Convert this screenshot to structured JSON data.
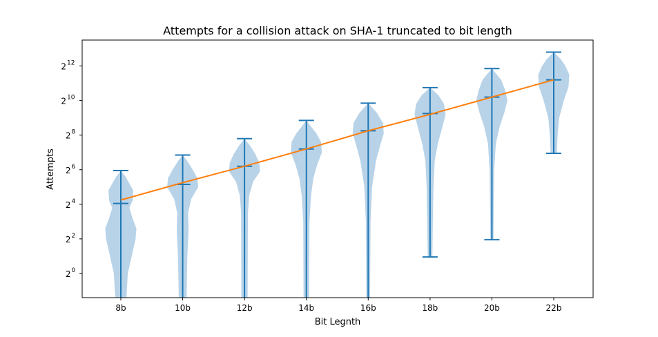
{
  "chart_data": {
    "type": "violin",
    "title": "Attempts for a collision attack on SHA-1 truncated to bit length",
    "xlabel": "Bit Legnth",
    "ylabel": "Attempts",
    "y_scale": "log2",
    "ylim_exp": [
      -1.4,
      13.5
    ],
    "y_ticks": [
      {
        "base": "2",
        "exp": "0",
        "value": 0
      },
      {
        "base": "2",
        "exp": "2",
        "value": 2
      },
      {
        "base": "2",
        "exp": "4",
        "value": 4
      },
      {
        "base": "2",
        "exp": "6",
        "value": 6
      },
      {
        "base": "2",
        "exp": "8",
        "value": 8
      },
      {
        "base": "2",
        "exp": "10",
        "value": 10
      },
      {
        "base": "2",
        "exp": "12",
        "value": 12
      }
    ],
    "categories": [
      "8b",
      "10b",
      "12b",
      "14b",
      "16b",
      "18b",
      "20b",
      "22b"
    ],
    "violins": [
      {
        "category": "8b",
        "max": 5.95,
        "median": 4.05,
        "min": -1.4,
        "profile": [
          [
            -1.4,
            0.36
          ],
          [
            0,
            0.45
          ],
          [
            1,
            0.7
          ],
          [
            2,
            0.95
          ],
          [
            2.6,
            1.0
          ],
          [
            3.2,
            0.75
          ],
          [
            3.8,
            0.55
          ],
          [
            4.2,
            0.75
          ],
          [
            4.8,
            0.8
          ],
          [
            5.2,
            0.55
          ],
          [
            5.6,
            0.3
          ],
          [
            5.95,
            0.0
          ]
        ]
      },
      {
        "category": "10b",
        "max": 6.85,
        "median": 5.15,
        "min": -1.4,
        "profile": [
          [
            -1.4,
            0.25
          ],
          [
            1,
            0.3
          ],
          [
            2.5,
            0.38
          ],
          [
            3.5,
            0.35
          ],
          [
            4.3,
            0.55
          ],
          [
            5.0,
            1.0
          ],
          [
            5.5,
            0.95
          ],
          [
            6.0,
            0.65
          ],
          [
            6.5,
            0.3
          ],
          [
            6.85,
            0.0
          ]
        ]
      },
      {
        "category": "12b",
        "max": 7.8,
        "median": 6.2,
        "min": -1.4,
        "profile": [
          [
            -1.4,
            0.2
          ],
          [
            3.5,
            0.22
          ],
          [
            4.5,
            0.3
          ],
          [
            5.3,
            0.55
          ],
          [
            5.9,
            1.0
          ],
          [
            6.4,
            0.95
          ],
          [
            6.9,
            0.7
          ],
          [
            7.4,
            0.35
          ],
          [
            7.8,
            0.0
          ]
        ]
      },
      {
        "category": "14b",
        "max": 8.85,
        "median": 7.2,
        "min": -1.4,
        "profile": [
          [
            -1.4,
            0.18
          ],
          [
            3,
            0.2
          ],
          [
            4.5,
            0.3
          ],
          [
            5.5,
            0.45
          ],
          [
            6.3,
            0.7
          ],
          [
            7.0,
            1.0
          ],
          [
            7.6,
            0.95
          ],
          [
            8.1,
            0.65
          ],
          [
            8.5,
            0.3
          ],
          [
            8.85,
            0.0
          ]
        ]
      },
      {
        "category": "16b",
        "max": 9.85,
        "median": 8.25,
        "min": -1.4,
        "profile": [
          [
            -1.4,
            0.12
          ],
          [
            3,
            0.15
          ],
          [
            5,
            0.25
          ],
          [
            6.5,
            0.5
          ],
          [
            7.5,
            0.8
          ],
          [
            8.1,
            1.0
          ],
          [
            8.7,
            0.95
          ],
          [
            9.3,
            0.55
          ],
          [
            9.85,
            0.0
          ]
        ]
      },
      {
        "category": "18b",
        "max": 10.75,
        "median": 9.25,
        "min": 0.95,
        "profile": [
          [
            0.95,
            0.15
          ],
          [
            3,
            0.18
          ],
          [
            5,
            0.22
          ],
          [
            6.5,
            0.3
          ],
          [
            7.5,
            0.5
          ],
          [
            8.5,
            0.8
          ],
          [
            9.2,
            1.0
          ],
          [
            9.8,
            0.9
          ],
          [
            10.3,
            0.55
          ],
          [
            10.75,
            0.0
          ]
        ]
      },
      {
        "category": "20b",
        "max": 11.85,
        "median": 10.2,
        "min": 1.95,
        "profile": [
          [
            1.95,
            0.1
          ],
          [
            4,
            0.12
          ],
          [
            6,
            0.15
          ],
          [
            7.5,
            0.25
          ],
          [
            8.5,
            0.5
          ],
          [
            9.3,
            0.8
          ],
          [
            10.0,
            1.0
          ],
          [
            10.6,
            0.85
          ],
          [
            11.2,
            0.6
          ],
          [
            11.85,
            0.0
          ]
        ]
      },
      {
        "category": "22b",
        "max": 12.8,
        "median": 11.2,
        "min": 6.95,
        "profile": [
          [
            6.95,
            0.2
          ],
          [
            8,
            0.25
          ],
          [
            9,
            0.35
          ],
          [
            10,
            0.65
          ],
          [
            10.8,
            0.95
          ],
          [
            11.5,
            1.0
          ],
          [
            12.0,
            0.75
          ],
          [
            12.4,
            0.45
          ],
          [
            12.8,
            0.0
          ]
        ]
      }
    ],
    "trend_line": {
      "x": [
        "8b",
        "10b",
        "12b",
        "14b",
        "16b",
        "18b",
        "20b",
        "22b"
      ],
      "y_exp": [
        4.25,
        5.25,
        6.2,
        7.2,
        8.25,
        9.2,
        10.2,
        11.2
      ]
    },
    "colors": {
      "violin_fill": "#b8d3e8",
      "violin_lines": "#1f77b4",
      "trend_line": "#ff7f0e",
      "axes": "#000000"
    }
  }
}
